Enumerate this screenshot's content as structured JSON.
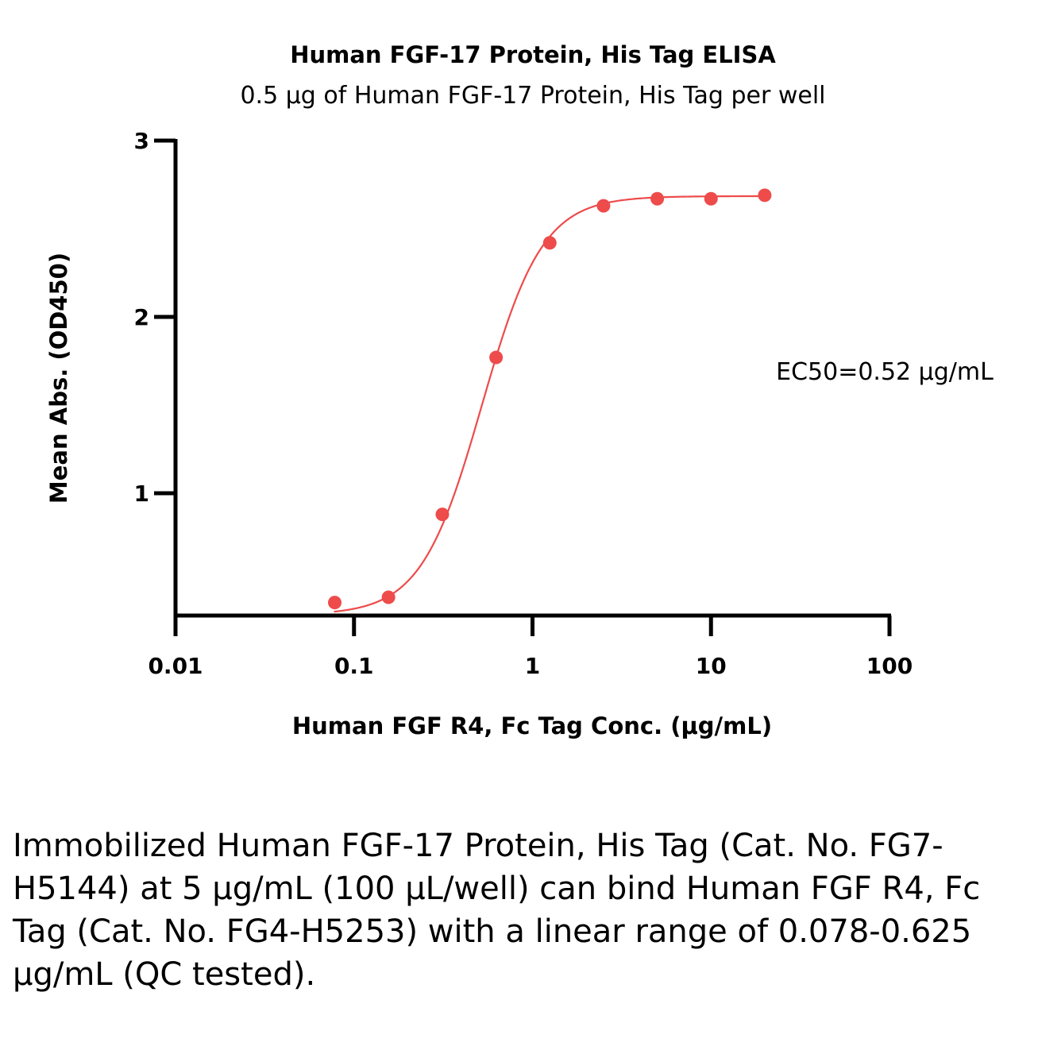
{
  "chart_data": {
    "type": "scatter",
    "title": "Human FGF-17 Protein, His Tag ELISA",
    "subtitle": "0.5 μg of Human FGF-17 Protein, His Tag per well",
    "xlabel": "Human FGF R4, Fc Tag Conc. (μg/mL)",
    "ylabel": "Mean Abs. (OD450)",
    "x_scale": "log",
    "xlim": [
      0.01,
      100
    ],
    "ylim": [
      0.3,
      3
    ],
    "x_ticks": [
      "0.01",
      "0.1",
      "1",
      "10",
      "100"
    ],
    "y_ticks": [
      "1",
      "2",
      "3"
    ],
    "grid": false,
    "series": [
      {
        "color": "#ee4b4b",
        "x": [
          0.078,
          0.156,
          0.3125,
          0.625,
          1.25,
          2.5,
          5,
          10,
          20
        ],
        "y": [
          0.38,
          0.41,
          0.88,
          1.77,
          2.42,
          2.63,
          2.67,
          2.67,
          2.69
        ],
        "fit": "4PL"
      }
    ],
    "annotation": "EC50=0.52 μg/mL"
  },
  "caption": "Immobilized Human FGF-17 Protein, His Tag (Cat. No. FG7-H5144) at 5 μg/mL (100 μL/well) can bind Human FGF R4, Fc Tag (Cat. No. FG4-H5253) with a linear range of 0.078-0.625 μg/mL (QC tested)."
}
